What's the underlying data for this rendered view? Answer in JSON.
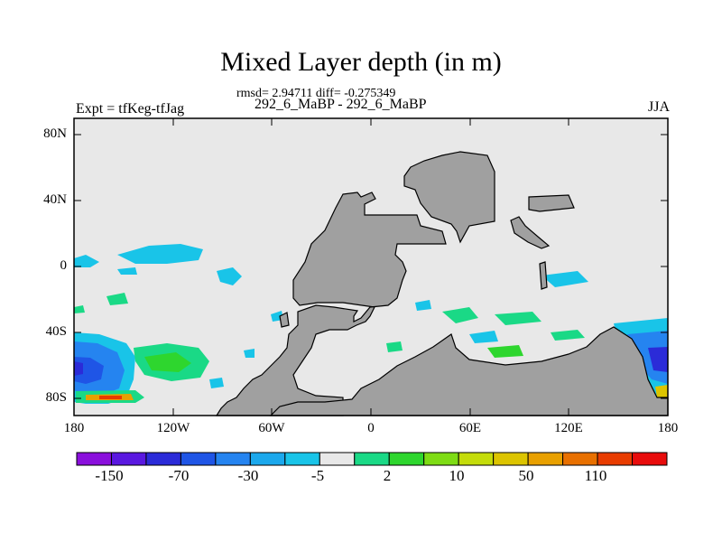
{
  "title": "Mixed Layer depth (in m)",
  "stats": "rmsd= 2.94711 diff= -0.275349",
  "subtitle": "292_6_MaBP - 292_6_MaBP",
  "left_label": "Expt = tfKeg-tfJag",
  "right_label": "JJA",
  "lat_ticks": [
    "80N",
    "40N",
    "0",
    "40S",
    "80S"
  ],
  "lon_ticks": [
    "180",
    "120W",
    "60W",
    "0",
    "60E",
    "120E",
    "180"
  ],
  "colorbar": {
    "labels": [
      "-150",
      "-70",
      "-30",
      "-5",
      "2",
      "10",
      "50",
      "110"
    ],
    "colors": [
      "#8a0fdc",
      "#5a18e0",
      "#2b2bd8",
      "#1f55e6",
      "#2584f0",
      "#1ba8ec",
      "#19c4e8",
      "#e8e8e8",
      "#1ad986",
      "#2ed62e",
      "#7edc14",
      "#c4dc0a",
      "#dcc400",
      "#e8a000",
      "#e87000",
      "#e83c00",
      "#e80c0c"
    ]
  },
  "colors": {
    "land": "#a0a0a0",
    "ocean_background": "#e8e8e8"
  }
}
